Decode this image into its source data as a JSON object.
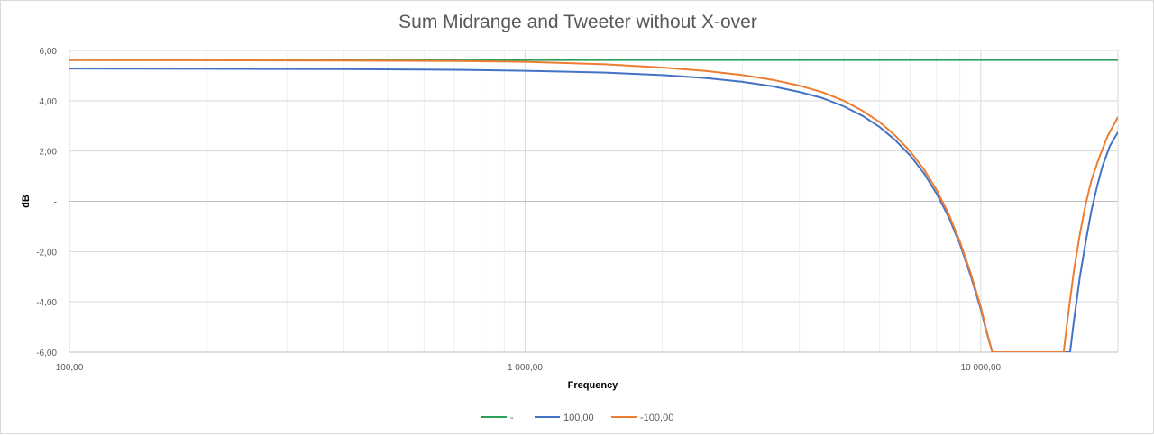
{
  "chart_data": {
    "type": "line",
    "title": "Sum Midrange and Tweeter without X-over",
    "xlabel": "Frequency",
    "ylabel": "dB",
    "x_scale": "log",
    "xlim": [
      100,
      20000
    ],
    "ylim": [
      -6,
      6
    ],
    "x_ticks": [
      {
        "value": 100,
        "label": "100,00"
      },
      {
        "value": 1000,
        "label": "1 000,00"
      },
      {
        "value": 10000,
        "label": "10 000,00"
      }
    ],
    "y_ticks": [
      {
        "value": 6,
        "label": "6,00"
      },
      {
        "value": 4,
        "label": "4,00"
      },
      {
        "value": 2,
        "label": "2,00"
      },
      {
        "value": 0,
        "label": "-"
      },
      {
        "value": -2,
        "label": "-2,00"
      },
      {
        "value": -4,
        "label": "-4,00"
      },
      {
        "value": -6,
        "label": "-6,00"
      }
    ],
    "grid": true,
    "legend_position": "bottom",
    "series": [
      {
        "name": "-",
        "color": "#2ca05a",
        "points": [
          [
            100,
            5.62
          ],
          [
            1000,
            5.62
          ],
          [
            10000,
            5.62
          ],
          [
            20000,
            5.62
          ]
        ]
      },
      {
        "name": "100,00",
        "color": "#4472c4",
        "points": [
          [
            100,
            5.28
          ],
          [
            200,
            5.27
          ],
          [
            400,
            5.26
          ],
          [
            700,
            5.23
          ],
          [
            1000,
            5.19
          ],
          [
            1500,
            5.12
          ],
          [
            2000,
            5.02
          ],
          [
            2500,
            4.9
          ],
          [
            3000,
            4.75
          ],
          [
            3500,
            4.57
          ],
          [
            4000,
            4.35
          ],
          [
            4500,
            4.1
          ],
          [
            5000,
            3.78
          ],
          [
            5500,
            3.4
          ],
          [
            6000,
            2.95
          ],
          [
            6500,
            2.42
          ],
          [
            7000,
            1.82
          ],
          [
            7500,
            1.12
          ],
          [
            8000,
            0.3
          ],
          [
            8500,
            -0.62
          ],
          [
            9000,
            -1.7
          ],
          [
            9500,
            -2.95
          ],
          [
            10000,
            -4.3
          ],
          [
            10300,
            -5.2
          ],
          [
            10600,
            -6
          ],
          [
            15700,
            -6
          ],
          [
            16000,
            -4.8
          ],
          [
            16500,
            -3.0
          ],
          [
            17000,
            -1.6
          ],
          [
            17500,
            -0.35
          ],
          [
            18000,
            0.6
          ],
          [
            18500,
            1.4
          ],
          [
            19200,
            2.2
          ],
          [
            20000,
            2.75
          ]
        ]
      },
      {
        "name": "-100,00",
        "color": "#ed7d31",
        "points": [
          [
            100,
            5.62
          ],
          [
            200,
            5.61
          ],
          [
            400,
            5.6
          ],
          [
            700,
            5.58
          ],
          [
            1000,
            5.55
          ],
          [
            1500,
            5.45
          ],
          [
            2000,
            5.32
          ],
          [
            2500,
            5.18
          ],
          [
            3000,
            5.02
          ],
          [
            3500,
            4.83
          ],
          [
            4000,
            4.6
          ],
          [
            4500,
            4.33
          ],
          [
            5000,
            4.0
          ],
          [
            5500,
            3.6
          ],
          [
            6000,
            3.15
          ],
          [
            6500,
            2.6
          ],
          [
            7000,
            1.98
          ],
          [
            7500,
            1.28
          ],
          [
            8000,
            0.45
          ],
          [
            8500,
            -0.5
          ],
          [
            9000,
            -1.6
          ],
          [
            9500,
            -2.85
          ],
          [
            10000,
            -4.2
          ],
          [
            10300,
            -5.15
          ],
          [
            10600,
            -6
          ],
          [
            15200,
            -6
          ],
          [
            15500,
            -4.7
          ],
          [
            16000,
            -2.8
          ],
          [
            16500,
            -1.3
          ],
          [
            17000,
            -0.1
          ],
          [
            17500,
            0.85
          ],
          [
            18200,
            1.75
          ],
          [
            19000,
            2.6
          ],
          [
            20000,
            3.35
          ]
        ]
      }
    ]
  }
}
